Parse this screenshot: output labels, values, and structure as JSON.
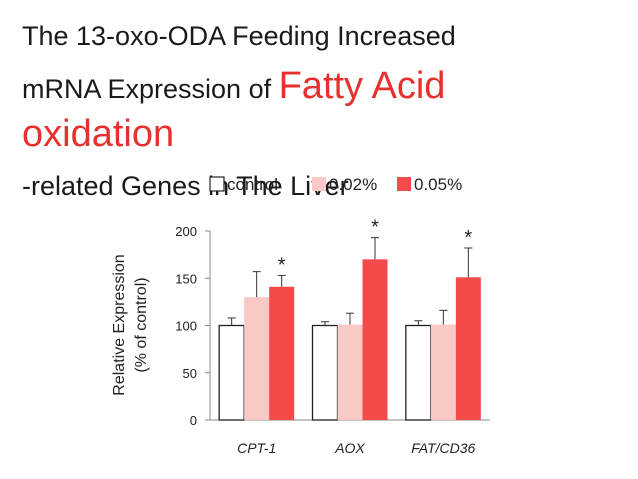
{
  "title": {
    "line1": "The 13-oxo-ODA Feeding Increased",
    "line2_prefix": "mRNA Expression of ",
    "line2_highlight": "Fatty Acid",
    "line3_highlight": "oxidation",
    "line4": "-related Genes in The Liver"
  },
  "colors": {
    "highlight": "#e8312f",
    "control": "#ffffff",
    "low_dose": "#f9c9c8",
    "high_dose": "#f44a4a"
  },
  "chart_data": {
    "type": "bar",
    "categories": [
      "CPT-1",
      "AOX",
      "FAT/CD36"
    ],
    "series": [
      {
        "name": "control",
        "values": [
          100,
          100,
          100
        ],
        "errors": [
          8,
          4,
          5
        ],
        "color": "#ffffff"
      },
      {
        "name": "0.02%",
        "values": [
          130,
          101,
          101
        ],
        "errors": [
          27,
          12,
          15
        ],
        "color": "#f9c9c8"
      },
      {
        "name": "0.05%",
        "values": [
          141,
          170,
          151
        ],
        "errors": [
          12,
          23,
          31
        ],
        "color": "#f44a4a"
      }
    ],
    "significance": [
      {
        "category": "CPT-1",
        "series": "0.05%",
        "mark": "*"
      },
      {
        "category": "AOX",
        "series": "0.05%",
        "mark": "*"
      },
      {
        "category": "FAT/CD36",
        "series": "0.05%",
        "mark": "*"
      }
    ],
    "ylabel_line1": "Relative Expression",
    "ylabel_line2": "(% of control)",
    "xlabel": "",
    "ylim": [
      0,
      200
    ],
    "yticks": [
      0,
      50,
      100,
      150,
      200
    ],
    "legend_position": "top"
  }
}
